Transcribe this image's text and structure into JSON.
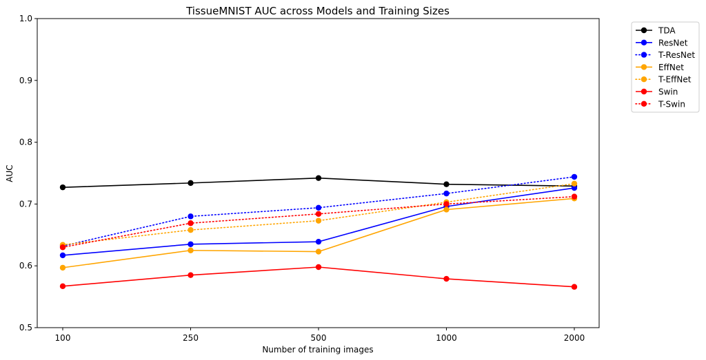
{
  "chart_data": {
    "type": "line",
    "title": "TissueMNIST AUC across Models and Training Sizes",
    "xlabel": "Number of training images",
    "ylabel": "AUC",
    "categories": [
      "100",
      "250",
      "500",
      "1000",
      "2000"
    ],
    "ylim": [
      0.5,
      1.0
    ],
    "yticks": [
      "0.5",
      "0.6",
      "0.7",
      "0.8",
      "0.9",
      "1.0"
    ],
    "grid": false,
    "legend_position": "outside-top-right",
    "series": [
      {
        "name": "TDA",
        "color": "#000000",
        "style": "solid",
        "values": [
          0.727,
          0.734,
          0.742,
          0.732,
          0.729
        ]
      },
      {
        "name": "ResNet",
        "color": "#0000ff",
        "style": "solid",
        "values": [
          0.617,
          0.635,
          0.639,
          0.696,
          0.726
        ]
      },
      {
        "name": "T-ResNet",
        "color": "#0000ff",
        "style": "dotted",
        "values": [
          0.632,
          0.68,
          0.694,
          0.717,
          0.744
        ]
      },
      {
        "name": "EffNet",
        "color": "#ffa500",
        "style": "solid",
        "values": [
          0.597,
          0.625,
          0.623,
          0.691,
          0.709
        ]
      },
      {
        "name": "T-EffNet",
        "color": "#ffa500",
        "style": "dotted",
        "values": [
          0.634,
          0.658,
          0.673,
          0.703,
          0.733
        ]
      },
      {
        "name": "Swin",
        "color": "#ff0000",
        "style": "solid",
        "values": [
          0.567,
          0.585,
          0.598,
          0.579,
          0.566
        ]
      },
      {
        "name": "T-Swin",
        "color": "#ff0000",
        "style": "dotted",
        "values": [
          0.63,
          0.669,
          0.684,
          0.7,
          0.712
        ]
      }
    ]
  }
}
